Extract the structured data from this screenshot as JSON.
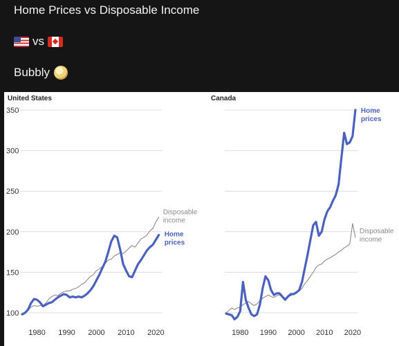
{
  "post": {
    "title": "Home Prices vs Disposable  Income",
    "flag_left_icon": "us-flag-icon",
    "vs_text": "vs",
    "flag_right_icon": "canada-flag-icon",
    "bubbly_text": "Bubbly",
    "bubbly_icon": "bubble-face-icon"
  },
  "colors": {
    "home_prices": "#4a61c0",
    "disposable_income": "#8a8a8a",
    "background": "#151516"
  },
  "chart_data": [
    {
      "type": "line",
      "title": "United States",
      "xlim": [
        1975,
        2022
      ],
      "ylim": [
        97,
        350
      ],
      "x_ticks": [
        1980,
        1990,
        2000,
        2010,
        2020
      ],
      "y_ticks": [
        100,
        150,
        200,
        250,
        300,
        350
      ],
      "grid": true,
      "series": [
        {
          "name": "Home prices",
          "color": "#4a61c0",
          "points": [
            [
              1975,
              98
            ],
            [
              1976,
              100
            ],
            [
              1977,
              104
            ],
            [
              1978,
              112
            ],
            [
              1979,
              117
            ],
            [
              1980,
              116
            ],
            [
              1981,
              113
            ],
            [
              1982,
              108
            ],
            [
              1983,
              110
            ],
            [
              1984,
              112
            ],
            [
              1985,
              113
            ],
            [
              1986,
              116
            ],
            [
              1987,
              119
            ],
            [
              1988,
              121
            ],
            [
              1989,
              123
            ],
            [
              1990,
              122
            ],
            [
              1991,
              119
            ],
            [
              1992,
              120
            ],
            [
              1993,
              119
            ],
            [
              1994,
              120
            ],
            [
              1995,
              119
            ],
            [
              1996,
              121
            ],
            [
              1997,
              124
            ],
            [
              1998,
              128
            ],
            [
              1999,
              133
            ],
            [
              2000,
              140
            ],
            [
              2001,
              147
            ],
            [
              2002,
              155
            ],
            [
              2003,
              163
            ],
            [
              2004,
              175
            ],
            [
              2005,
              188
            ],
            [
              2006,
              195
            ],
            [
              2007,
              193
            ],
            [
              2008,
              178
            ],
            [
              2009,
              160
            ],
            [
              2010,
              152
            ],
            [
              2011,
              145
            ],
            [
              2012,
              144
            ],
            [
              2013,
              152
            ],
            [
              2014,
              160
            ],
            [
              2015,
              165
            ],
            [
              2016,
              171
            ],
            [
              2017,
              177
            ],
            [
              2018,
              181
            ],
            [
              2019,
              184
            ],
            [
              2020,
              190
            ],
            [
              2021,
              196
            ]
          ]
        },
        {
          "name": "Disposable income",
          "color": "#8a8a8a",
          "points": [
            [
              1975,
              98
            ],
            [
              1976,
              100
            ],
            [
              1977,
              103
            ],
            [
              1978,
              107
            ],
            [
              1979,
              109
            ],
            [
              1980,
              108
            ],
            [
              1981,
              109
            ],
            [
              1982,
              109
            ],
            [
              1983,
              112
            ],
            [
              1984,
              117
            ],
            [
              1985,
              120
            ],
            [
              1986,
              122
            ],
            [
              1987,
              121
            ],
            [
              1988,
              124
            ],
            [
              1989,
              126
            ],
            [
              1990,
              127
            ],
            [
              1991,
              127
            ],
            [
              1992,
              129
            ],
            [
              1993,
              130
            ],
            [
              1994,
              132
            ],
            [
              1995,
              135
            ],
            [
              1996,
              137
            ],
            [
              1997,
              141
            ],
            [
              1998,
              145
            ],
            [
              1999,
              147
            ],
            [
              2000,
              152
            ],
            [
              2001,
              154
            ],
            [
              2002,
              157
            ],
            [
              2003,
              161
            ],
            [
              2004,
              165
            ],
            [
              2005,
              166
            ],
            [
              2006,
              170
            ],
            [
              2007,
              172
            ],
            [
              2008,
              174
            ],
            [
              2009,
              173
            ],
            [
              2010,
              176
            ],
            [
              2011,
              180
            ],
            [
              2012,
              183
            ],
            [
              2013,
              181
            ],
            [
              2014,
              186
            ],
            [
              2015,
              191
            ],
            [
              2016,
              193
            ],
            [
              2017,
              196
            ],
            [
              2018,
              201
            ],
            [
              2019,
              204
            ],
            [
              2020,
              212
            ],
            [
              2021,
              218
            ]
          ]
        }
      ],
      "end_labels": [
        {
          "series": "Disposable income",
          "lines": [
            "Disposable",
            "income"
          ]
        },
        {
          "series": "Home prices",
          "lines": [
            "Home",
            "prices"
          ]
        }
      ]
    },
    {
      "type": "line",
      "title": "Canada",
      "xlim": [
        1975,
        2022
      ],
      "ylim": [
        89,
        355
      ],
      "x_ticks": [
        1980,
        1990,
        2000,
        2010,
        2020
      ],
      "y_ticks": [],
      "grid": true,
      "series": [
        {
          "name": "Home prices",
          "color": "#4a61c0",
          "points": [
            [
              1975,
              99
            ],
            [
              1976,
              98
            ],
            [
              1977,
              97
            ],
            [
              1978,
              92
            ],
            [
              1979,
              95
            ],
            [
              1980,
              102
            ],
            [
              1981,
              138
            ],
            [
              1982,
              116
            ],
            [
              1983,
              106
            ],
            [
              1984,
              98
            ],
            [
              1985,
              96
            ],
            [
              1986,
              98
            ],
            [
              1987,
              110
            ],
            [
              1988,
              130
            ],
            [
              1989,
              145
            ],
            [
              1990,
              140
            ],
            [
              1991,
              128
            ],
            [
              1992,
              122
            ],
            [
              1993,
              124
            ],
            [
              1994,
              124
            ],
            [
              1995,
              120
            ],
            [
              1996,
              116
            ],
            [
              1997,
              120
            ],
            [
              1998,
              123
            ],
            [
              1999,
              123
            ],
            [
              2000,
              125
            ],
            [
              2001,
              128
            ],
            [
              2002,
              138
            ],
            [
              2003,
              155
            ],
            [
              2004,
              172
            ],
            [
              2005,
              190
            ],
            [
              2006,
              208
            ],
            [
              2007,
              212
            ],
            [
              2008,
              195
            ],
            [
              2009,
              200
            ],
            [
              2010,
              215
            ],
            [
              2011,
              225
            ],
            [
              2012,
              230
            ],
            [
              2013,
              238
            ],
            [
              2014,
              245
            ],
            [
              2015,
              258
            ],
            [
              2016,
              290
            ],
            [
              2017,
              322
            ],
            [
              2018,
              308
            ],
            [
              2019,
              310
            ],
            [
              2020,
              318
            ],
            [
              2021,
              350
            ]
          ]
        },
        {
          "name": "Disposable income",
          "color": "#8a8a8a",
          "points": [
            [
              1975,
              100
            ],
            [
              1976,
              103
            ],
            [
              1977,
              106
            ],
            [
              1978,
              104
            ],
            [
              1979,
              106
            ],
            [
              1980,
              107
            ],
            [
              1981,
              110
            ],
            [
              1982,
              112
            ],
            [
              1983,
              114
            ],
            [
              1984,
              111
            ],
            [
              1985,
              109
            ],
            [
              1986,
              111
            ],
            [
              1987,
              115
            ],
            [
              1988,
              118
            ],
            [
              1989,
              120
            ],
            [
              1990,
              122
            ],
            [
              1991,
              120
            ],
            [
              1992,
              119
            ],
            [
              1993,
              121
            ],
            [
              1994,
              122
            ],
            [
              1995,
              119
            ],
            [
              1996,
              118
            ],
            [
              1997,
              120
            ],
            [
              1998,
              121
            ],
            [
              1999,
              124
            ],
            [
              2000,
              125
            ],
            [
              2001,
              127
            ],
            [
              2002,
              130
            ],
            [
              2003,
              136
            ],
            [
              2004,
              140
            ],
            [
              2005,
              145
            ],
            [
              2006,
              150
            ],
            [
              2007,
              156
            ],
            [
              2008,
              159
            ],
            [
              2009,
              160
            ],
            [
              2010,
              164
            ],
            [
              2011,
              166
            ],
            [
              2012,
              168
            ],
            [
              2013,
              170
            ],
            [
              2014,
              172
            ],
            [
              2015,
              175
            ],
            [
              2016,
              177
            ],
            [
              2017,
              180
            ],
            [
              2018,
              182
            ],
            [
              2019,
              185
            ],
            [
              2020,
              210
            ],
            [
              2021,
              193
            ]
          ]
        }
      ],
      "end_labels": [
        {
          "series": "Home prices",
          "lines": [
            "Home",
            "prices"
          ]
        },
        {
          "series": "Disposable income",
          "lines": [
            "Disposable",
            "income"
          ]
        }
      ]
    }
  ]
}
